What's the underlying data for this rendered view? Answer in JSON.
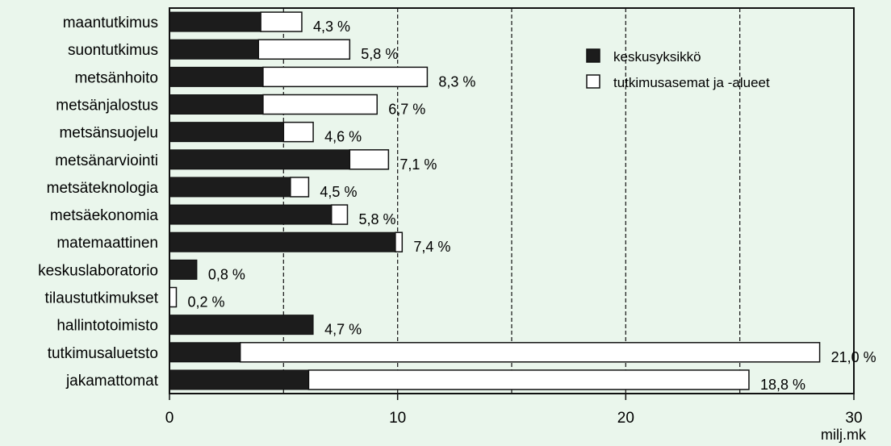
{
  "chart_data": {
    "type": "bar",
    "orientation": "horizontal",
    "stacked": true,
    "categories": [
      "maantutkimus",
      "suontutkimus",
      "metsänhoito",
      "metsänjalostus",
      "metsänsuojelu",
      "metsänarviointi",
      "metsäteknologia",
      "metsäekonomia",
      "matemaattinen",
      "keskuslaboratorio",
      "tilaustutkimukset",
      "hallintotoimisto",
      "tutkimusaluetsto",
      "jakamattomat"
    ],
    "series": [
      {
        "name": "keskusyksikkö",
        "color": "#1c1c1c",
        "values": [
          4.0,
          3.9,
          4.1,
          4.1,
          5.0,
          7.9,
          5.3,
          7.1,
          9.9,
          1.2,
          0.0,
          6.3,
          3.1,
          6.1
        ]
      },
      {
        "name": "tutkimusasemat ja -alueet",
        "color": "#ffffff",
        "values": [
          1.8,
          4.0,
          7.2,
          5.0,
          1.3,
          1.7,
          0.8,
          0.7,
          0.3,
          0.0,
          0.3,
          0.0,
          25.4,
          19.3
        ]
      }
    ],
    "data_labels": [
      "4,3 %",
      "5,8 %",
      "8,3 %",
      "6,7 %",
      "4,6 %",
      "7,1 %",
      "4,5 %",
      "5,8 %",
      "7,4 %",
      "0,8 %",
      "0,2 %",
      "4,7 %",
      "21,0 %",
      "18,8 %"
    ],
    "x_ticks": [
      "0",
      "10",
      "20",
      "30"
    ],
    "x_tick_values": [
      0,
      10,
      20,
      30
    ],
    "xlim": [
      0,
      30
    ],
    "xlabel": "milj.mk",
    "grid": "vertical dashed lines at 5, 10, 15, 20, 25",
    "legend_position": "top-right"
  }
}
